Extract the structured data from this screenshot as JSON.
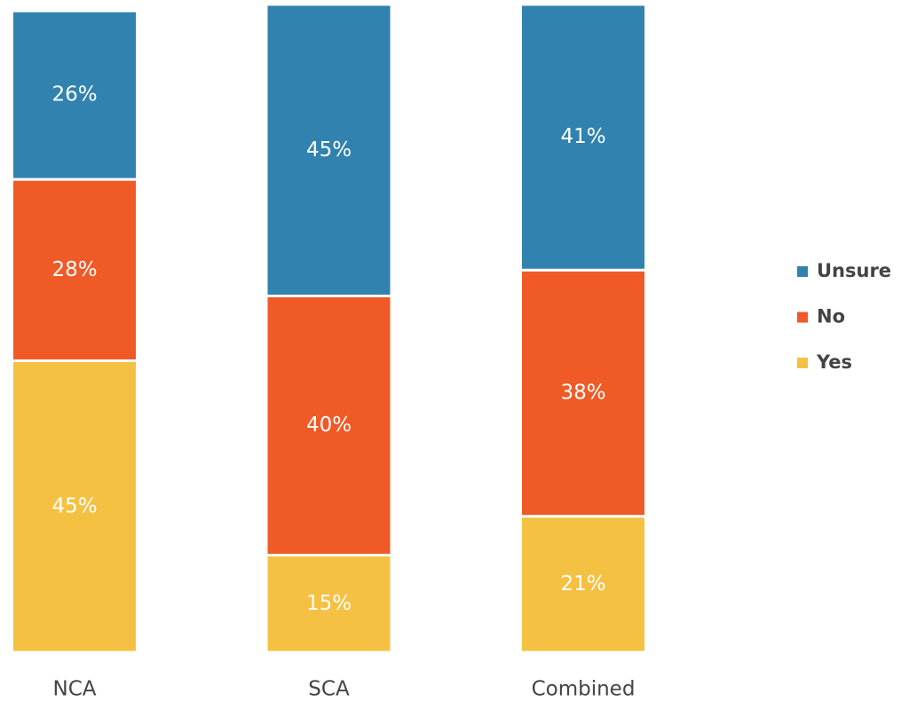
{
  "chart_data": {
    "type": "stacked_bar",
    "categories": [
      "NCA",
      "SCA",
      "Combined"
    ],
    "series": [
      {
        "name": "Yes",
        "color": "#f5c142",
        "values": [
          45,
          15,
          21
        ],
        "value_labels": [
          "45%",
          "15%",
          "21%"
        ]
      },
      {
        "name": "No",
        "color": "#ef5a27",
        "values": [
          28,
          40,
          38
        ],
        "value_labels": [
          "28%",
          "40%",
          "38%"
        ]
      },
      {
        "name": "Unsure",
        "color": "#3182ae",
        "values": [
          26,
          45,
          41
        ],
        "value_labels": [
          "26%",
          "45%",
          "41%"
        ]
      }
    ],
    "ylim": [
      0,
      100
    ],
    "legend": "right"
  }
}
